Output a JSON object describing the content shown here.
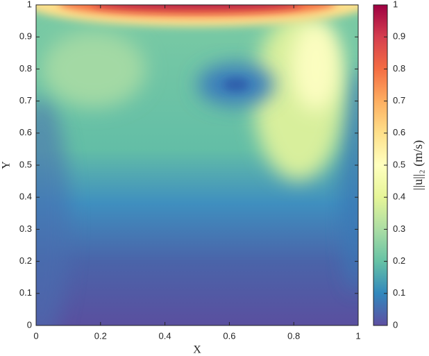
{
  "chart_data": {
    "type": "contour",
    "xlabel": "X",
    "ylabel": "Y",
    "colorbar_label": "||u||₂ (m/s)",
    "xlim": [
      0,
      1
    ],
    "xticks": [
      0,
      0.2,
      0.4,
      0.6,
      0.8,
      1
    ],
    "ylim": [
      0,
      1
    ],
    "yticks": [
      0,
      0.1,
      0.2,
      0.3,
      0.4,
      0.5,
      0.6,
      0.7,
      0.8,
      0.9,
      1
    ],
    "clim": [
      0,
      1
    ],
    "cticks": [
      0,
      0.1,
      0.2,
      0.3,
      0.4,
      0.5,
      0.6,
      0.7,
      0.8,
      0.9,
      1
    ],
    "colormap": [
      "#5e4fa2",
      "#3288bd",
      "#66c2a5",
      "#abdda4",
      "#e6f598",
      "#ffffbf",
      "#fee08b",
      "#fdae61",
      "#f46d43",
      "#d53e4f",
      "#9e0142"
    ]
  }
}
